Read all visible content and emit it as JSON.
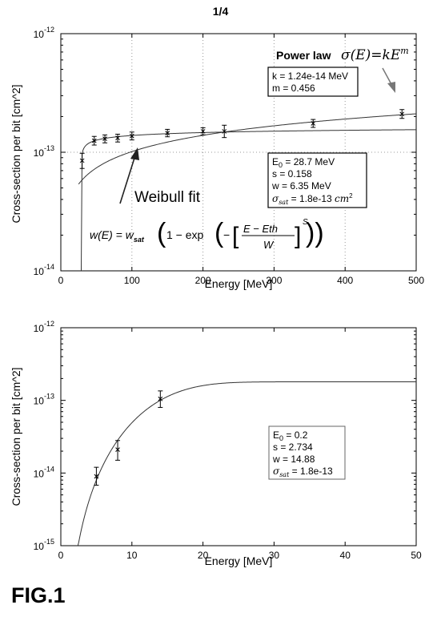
{
  "page": {
    "page_number": "1/4",
    "figure_label": "FIG.1"
  },
  "chart_data": [
    {
      "type": "scatter",
      "title": "",
      "xlabel": "Energy [MeV]",
      "ylabel": "Cross-section per bit [cm^2]",
      "xlim": [
        0,
        500
      ],
      "ylim": [
        1e-14,
        1e-12
      ],
      "yscale": "log",
      "grid": true,
      "x_ticks": [
        "0",
        "100",
        "200",
        "300",
        "400",
        "500"
      ],
      "y_tick_exponents": [
        "-14",
        "-13",
        "-12"
      ],
      "y_tick_base": "10",
      "series": [
        {
          "type": "errorbar",
          "points": [
            {
              "x": 30,
              "y": 8.5e-14,
              "lo": 7.3e-14,
              "hi": 9.8e-14
            },
            {
              "x": 47,
              "y": 1.25e-13,
              "lo": 1.15e-13,
              "hi": 1.36e-13
            },
            {
              "x": 62,
              "y": 1.3e-13,
              "lo": 1.2e-13,
              "hi": 1.4e-13
            },
            {
              "x": 80,
              "y": 1.32e-13,
              "lo": 1.22e-13,
              "hi": 1.42e-13
            },
            {
              "x": 100,
              "y": 1.37e-13,
              "lo": 1.27e-13,
              "hi": 1.48e-13
            },
            {
              "x": 150,
              "y": 1.45e-13,
              "lo": 1.35e-13,
              "hi": 1.56e-13
            },
            {
              "x": 200,
              "y": 1.5e-13,
              "lo": 1.4e-13,
              "hi": 1.61e-13
            },
            {
              "x": 230,
              "y": 1.5e-13,
              "lo": 1.33e-13,
              "hi": 1.69e-13
            },
            {
              "x": 355,
              "y": 1.75e-13,
              "lo": 1.62e-13,
              "hi": 1.89e-13
            },
            {
              "x": 480,
              "y": 2.1e-13,
              "lo": 1.93e-13,
              "hi": 2.29e-13
            }
          ]
        },
        {
          "type": "weibull",
          "E0": 28.7,
          "s": 0.158,
          "w": 6.35,
          "sat": 1.8e-13,
          "x_range": [
            28.7,
            500
          ]
        },
        {
          "type": "powerlaw",
          "k": 1.24e-14,
          "m": 0.456,
          "x_range": [
            25,
            500
          ]
        }
      ],
      "annotations": {
        "weibull_label": "Weibull fit",
        "weibull_formula_lhs": "w(E) = w",
        "weibull_formula_lhs_sub": "sat",
        "weibull_formula_body": "1 − exp",
        "weibull_formula_num": "E − Eth",
        "weibull_formula_den": "W",
        "weibull_formula_exp": "S",
        "power_law_label": "Power law",
        "power_law_formula": "σ(E)=kE",
        "power_law_formula_exp": "m",
        "power_params": [
          "k = 1.24e-14 MeV",
          "m = 0.456"
        ],
        "weibull_params": {
          "e0_symbol": "E",
          "e0_sub": "0",
          "e0_value": " = 28.7 MeV",
          "s": "s = 0.158",
          "w": "w = 6.35 MeV",
          "sat_symbol": "σ",
          "sat_sub": "sat",
          "sat_value": " = 1.8e-13 ",
          "sat_unit": "cm",
          "sat_unit_exp": "2"
        }
      }
    },
    {
      "type": "scatter",
      "title": "",
      "xlabel": "Energy [MeV]",
      "ylabel": "Cross-section per bit [cm^2]",
      "xlim": [
        0,
        50
      ],
      "ylim": [
        1e-15,
        1e-12
      ],
      "yscale": "log",
      "grid": false,
      "x_ticks": [
        "0",
        "10",
        "20",
        "30",
        "40",
        "50"
      ],
      "y_tick_exponents": [
        "-15",
        "-14",
        "-13",
        "-12"
      ],
      "y_tick_base": "10",
      "series": [
        {
          "type": "errorbar",
          "points": [
            {
              "x": 5,
              "y": 9e-15,
              "lo": 6.8e-15,
              "hi": 1.2e-14
            },
            {
              "x": 8,
              "y": 2.1e-14,
              "lo": 1.5e-14,
              "hi": 2.8e-14
            },
            {
              "x": 14,
              "y": 1.05e-13,
              "lo": 8e-14,
              "hi": 1.35e-13
            }
          ]
        },
        {
          "type": "weibull",
          "E0": 0.2,
          "s": 2.734,
          "w": 14.88,
          "sat": 1.8e-13,
          "x_range": [
            2.4,
            50
          ]
        }
      ],
      "annotations": {
        "weibull_params": {
          "e0_symbol": "E",
          "e0_sub": "0",
          "e0_value": " = 0.2",
          "s": "s = 2.734",
          "w": "w = 14.88",
          "sat_symbol": "σ",
          "sat_sub": "sat",
          "sat_value": " = 1.8e-13"
        }
      }
    }
  ]
}
